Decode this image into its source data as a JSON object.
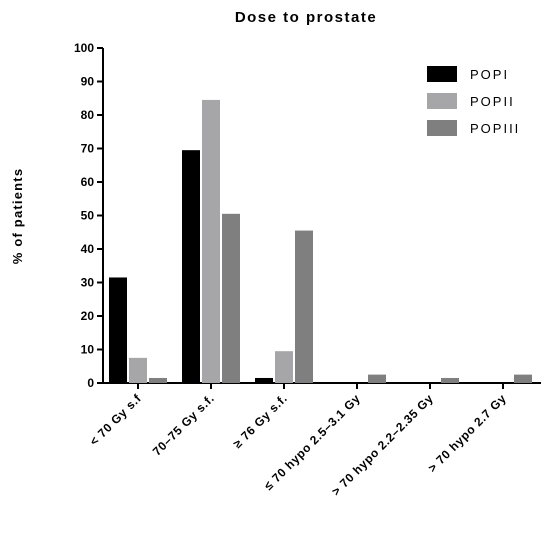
{
  "chart_data": {
    "type": "bar",
    "title": "Dose to prostate",
    "ylabel": "% of patients",
    "xlabel": "",
    "ylim": [
      0,
      100
    ],
    "yticks": [
      0,
      10,
      20,
      30,
      40,
      50,
      60,
      70,
      80,
      90,
      100
    ],
    "categories": [
      "< 70 Gy s.f",
      "70–75 Gy s.f.",
      "≥ 76 Gy s.f.",
      "≤ 70 hypo 2.5–3.1 Gy",
      "> 70 hypo 2.2–2.35 Gy",
      "> 70 hypo 2.7 Gy"
    ],
    "series": [
      {
        "name": "POPI",
        "color": "#000000",
        "values": [
          31.5,
          69.5,
          1.5,
          0,
          0,
          0
        ]
      },
      {
        "name": "POPII",
        "color": "#a6a6a8",
        "values": [
          7.5,
          84.5,
          9.5,
          0,
          0,
          0
        ]
      },
      {
        "name": "POPIII",
        "color": "#7f7f7f",
        "values": [
          1.5,
          50.5,
          45.5,
          2.5,
          1.5,
          2.5
        ]
      }
    ],
    "grid": false,
    "legend_position": "top-right"
  }
}
